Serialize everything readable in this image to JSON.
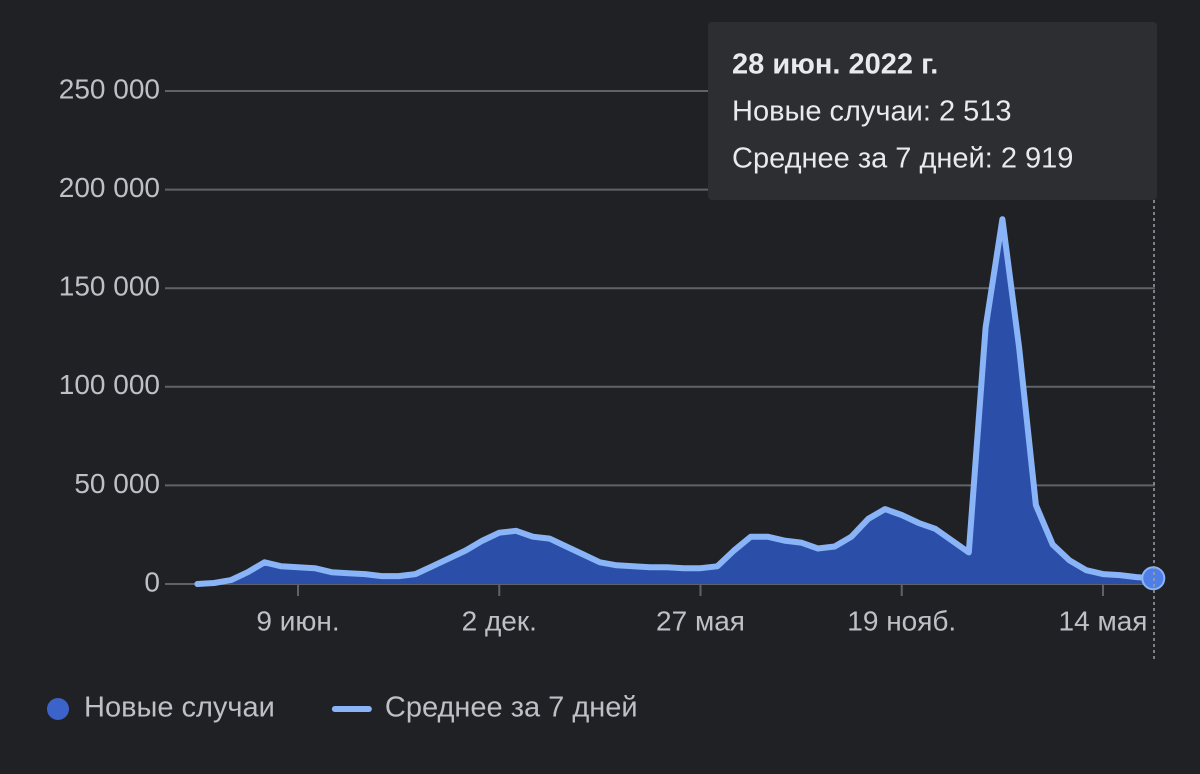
{
  "chart_data": {
    "type": "area",
    "categories": [
      null,
      null,
      null,
      null,
      null,
      null,
      "9 июн.",
      null,
      null,
      null,
      null,
      null,
      null,
      null,
      null,
      null,
      null,
      null,
      "2 дек.",
      null,
      null,
      null,
      null,
      null,
      null,
      null,
      null,
      null,
      null,
      null,
      "27 мая",
      null,
      null,
      null,
      null,
      null,
      null,
      null,
      null,
      null,
      null,
      null,
      "19 нояб.",
      null,
      null,
      null,
      null,
      null,
      null,
      null,
      null,
      null,
      null,
      null,
      "14 мая",
      null,
      null,
      null
    ],
    "series": [
      {
        "name": "Новые случаи",
        "style": "area",
        "color": "#2b4fa8",
        "values": [
          0,
          500,
          2000,
          6000,
          11000,
          9000,
          8500,
          8000,
          6000,
          5500,
          5000,
          4000,
          4000,
          5000,
          9000,
          13000,
          17000,
          22000,
          26000,
          27000,
          24000,
          23000,
          19000,
          15000,
          11000,
          9500,
          9000,
          8500,
          8500,
          8000,
          8000,
          9000,
          17000,
          24000,
          24000,
          22000,
          21000,
          18000,
          19000,
          24000,
          33000,
          38000,
          35000,
          31000,
          28000,
          22000,
          16000,
          130000,
          185000,
          120000,
          40000,
          20000,
          12000,
          7000,
          5000,
          4500,
          3500,
          2513
        ]
      },
      {
        "name": "Среднее за 7 дней",
        "style": "line",
        "color": "#8ab4f8",
        "values": [
          0,
          500,
          2000,
          6000,
          11000,
          9000,
          8500,
          8000,
          6000,
          5500,
          5000,
          4000,
          4000,
          5000,
          9000,
          13000,
          17000,
          22000,
          26000,
          27000,
          24000,
          23000,
          19000,
          15000,
          11000,
          9500,
          9000,
          8500,
          8500,
          8000,
          8000,
          9000,
          17000,
          24000,
          24000,
          22000,
          21000,
          18000,
          19000,
          24000,
          33000,
          38000,
          35000,
          31000,
          28000,
          22000,
          16000,
          130000,
          185000,
          120000,
          40000,
          20000,
          12000,
          7000,
          5000,
          4500,
          3500,
          2919
        ]
      }
    ],
    "ylim": [
      0,
      250000
    ],
    "yticks": [
      {
        "value": 0,
        "label": "0"
      },
      {
        "value": 50000,
        "label": "50 000"
      },
      {
        "value": 100000,
        "label": "100 000"
      },
      {
        "value": 150000,
        "label": "150 000"
      },
      {
        "value": 200000,
        "label": "200 000"
      },
      {
        "value": 250000,
        "label": "250 000"
      }
    ],
    "grid": true,
    "tooltip": {
      "title": "28 июн. 2022 г.",
      "lines": [
        "Новые случаи: 2 513",
        "Среднее за 7 дней: 2 919"
      ]
    }
  }
}
